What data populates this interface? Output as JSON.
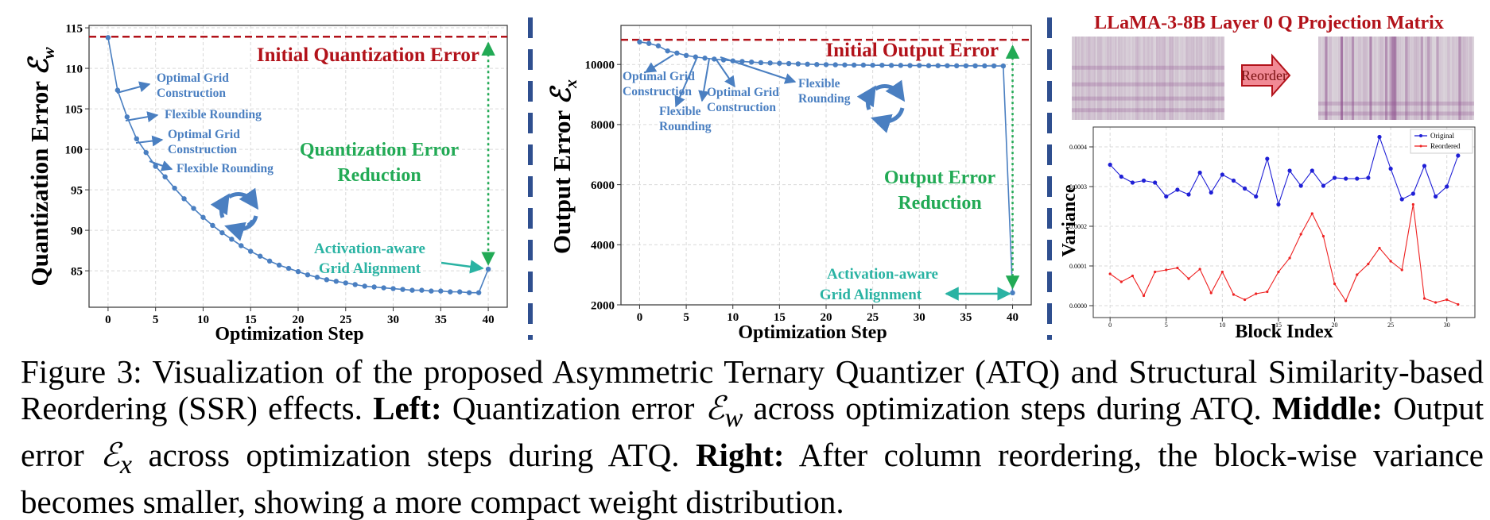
{
  "chart_data": [
    {
      "type": "line",
      "id": "left",
      "title": "",
      "xlabel": "Optimization Step",
      "ylabel": "Quantization Error",
      "ylabel_symbol": "ℰ",
      "ylabel_sub": "w",
      "xlim": [
        -2,
        42
      ],
      "ylim": [
        80.5,
        115.3
      ],
      "xticks": [
        0,
        5,
        10,
        15,
        20,
        25,
        30,
        35,
        40
      ],
      "yticks": [
        85,
        90,
        95,
        100,
        105,
        110,
        115
      ],
      "grid": true,
      "series": [
        {
          "name": "",
          "color": "#4a7fc1",
          "x": [
            0,
            1,
            2,
            3,
            4,
            5,
            6,
            7,
            8,
            9,
            10,
            11,
            12,
            13,
            14,
            15,
            16,
            17,
            18,
            19,
            20,
            21,
            22,
            23,
            24,
            25,
            26,
            27,
            28,
            29,
            30,
            31,
            32,
            33,
            34,
            35,
            36,
            37,
            38,
            39,
            40
          ],
          "y": [
            113.8,
            107.3,
            104.0,
            101.3,
            99.6,
            97.9,
            96.6,
            95.2,
            93.9,
            92.7,
            91.6,
            90.6,
            89.7,
            88.9,
            88.1,
            87.4,
            86.8,
            86.2,
            85.7,
            85.3,
            84.9,
            84.5,
            84.2,
            83.9,
            83.7,
            83.5,
            83.3,
            83.1,
            83.0,
            82.9,
            82.8,
            82.7,
            82.6,
            82.6,
            82.5,
            82.5,
            82.4,
            82.4,
            82.3,
            82.3,
            85.2
          ]
        }
      ],
      "reference_line": {
        "value": 113.9,
        "label": "Initial Quantization Error",
        "color": "#b2121a"
      },
      "annotations": [
        {
          "text": "Optimal Grid",
          "text2": "Construction",
          "color": "#4a7fc1"
        },
        {
          "text": "Flexible Rounding",
          "color": "#4a7fc1"
        },
        {
          "text": "Optimal Grid",
          "text2": "Construction",
          "color": "#4a7fc1"
        },
        {
          "text": "Flexible Rounding",
          "color": "#4a7fc1"
        },
        {
          "text": "Quantization Error",
          "text2": "Reduction",
          "color": "#22aa55"
        },
        {
          "text": "Activation-aware",
          "text2": "Grid Alignment",
          "color": "#2ab3a3"
        }
      ]
    },
    {
      "type": "line",
      "id": "middle",
      "title": "",
      "xlabel": "Optimization Step",
      "ylabel": "Output Error",
      "ylabel_symbol": "ℰ",
      "ylabel_sub": "x",
      "xlim": [
        -2,
        42
      ],
      "ylim": [
        2000,
        11300
      ],
      "xticks": [
        0,
        5,
        10,
        15,
        20,
        25,
        30,
        35,
        40
      ],
      "yticks": [
        2000,
        4000,
        6000,
        8000,
        10000
      ],
      "grid": true,
      "series": [
        {
          "name": "",
          "color": "#4a7fc1",
          "x": [
            0,
            1,
            2,
            3,
            4,
            5,
            6,
            7,
            8,
            9,
            10,
            11,
            12,
            13,
            14,
            15,
            16,
            17,
            18,
            19,
            20,
            21,
            22,
            23,
            24,
            25,
            26,
            27,
            28,
            29,
            30,
            31,
            32,
            33,
            34,
            35,
            36,
            37,
            38,
            39,
            40
          ],
          "y": [
            10750,
            10700,
            10620,
            10450,
            10380,
            10300,
            10250,
            10210,
            10180,
            10150,
            10120,
            10100,
            10080,
            10060,
            10050,
            10040,
            10030,
            10020,
            10010,
            10000,
            9995,
            9990,
            9985,
            9980,
            9980,
            9975,
            9975,
            9970,
            9970,
            9965,
            9965,
            9960,
            9960,
            9958,
            9956,
            9955,
            9954,
            9953,
            9952,
            9950,
            2400
          ]
        }
      ],
      "reference_line": {
        "value": 10820,
        "label": "Initial Output Error",
        "color": "#b2121a"
      },
      "annotations": [
        {
          "text": "Optimal Grid",
          "text2": "Construction",
          "color": "#4a7fc1"
        },
        {
          "text": "Flexible",
          "text2": "Rounding",
          "color": "#4a7fc1"
        },
        {
          "text": "Optimal Grid",
          "text2": "Construction",
          "color": "#4a7fc1"
        },
        {
          "text": "Flexible",
          "text2": "Rounding",
          "color": "#4a7fc1"
        },
        {
          "text": "Output Error",
          "text2": "Reduction",
          "color": "#22aa55"
        },
        {
          "text": "Activation-aware",
          "text2": "Grid Alignment",
          "color": "#2ab3a3"
        }
      ]
    },
    {
      "type": "line",
      "id": "right",
      "title": "LLaMA-3-8B Layer 0 Q Projection Matrix",
      "title_color": "#b2121a",
      "arrow_label": "Reorder",
      "xlabel": "Block Index",
      "ylabel": "Variance",
      "xlim": [
        -1.5,
        32.5
      ],
      "ylim": [
        -3e-05,
        0.00045
      ],
      "xticks": [
        0,
        5,
        10,
        15,
        20,
        25,
        30
      ],
      "yticks": [
        0.0,
        0.0001,
        0.0002,
        0.0003,
        0.0004
      ],
      "ytick_labels": [
        "0.0000",
        "0.0001",
        "0.0002",
        "0.0003",
        "0.0004"
      ],
      "grid": true,
      "legend": "top-right",
      "series": [
        {
          "name": "Original",
          "color": "#1f1fd6",
          "x": [
            0,
            1,
            2,
            3,
            4,
            5,
            6,
            7,
            8,
            9,
            10,
            11,
            12,
            13,
            14,
            15,
            16,
            17,
            18,
            19,
            20,
            21,
            22,
            23,
            24,
            25,
            26,
            27,
            28,
            29,
            30,
            31
          ],
          "y": [
            0.000355,
            0.000325,
            0.00031,
            0.000315,
            0.00031,
            0.000275,
            0.000292,
            0.00028,
            0.000335,
            0.000285,
            0.00033,
            0.000315,
            0.000295,
            0.000275,
            0.00037,
            0.000255,
            0.00034,
            0.000302,
            0.00034,
            0.000302,
            0.000322,
            0.00032,
            0.00032,
            0.000322,
            0.000425,
            0.000345,
            0.000268,
            0.000282,
            0.000352,
            0.000275,
            0.0003,
            0.000378
          ]
        },
        {
          "name": "Reordered",
          "color": "#ee2222",
          "x": [
            0,
            1,
            2,
            3,
            4,
            5,
            6,
            7,
            8,
            9,
            10,
            11,
            12,
            13,
            14,
            15,
            16,
            17,
            18,
            19,
            20,
            21,
            22,
            23,
            24,
            25,
            26,
            27,
            28,
            29,
            30,
            31
          ],
          "y": [
            8e-05,
            6e-05,
            7.5e-05,
            2.5e-05,
            8.5e-05,
            9e-05,
            9.5e-05,
            6.8e-05,
            9.2e-05,
            3.2e-05,
            8.5e-05,
            2.8e-05,
            1.5e-05,
            3e-05,
            3.5e-05,
            8.5e-05,
            0.00012,
            0.00018,
            0.000232,
            0.000175,
            5.5e-05,
            1.2e-05,
            7.8e-05,
            0.000105,
            0.000145,
            0.000112,
            9e-05,
            0.000255,
            1.8e-05,
            8e-06,
            1.5e-05,
            3e-06
          ]
        }
      ]
    }
  ],
  "caption": {
    "lead": "Figure 3:  Visualization of the proposed Asymmetric Ternary Quantizer (ATQ) and Structural Similarity-based Reordering (SSR) effects.",
    "left_label": "Left:",
    "left_text_a": "Quantization error",
    "left_sym": "ℰ",
    "left_sub": "w",
    "left_text_b": "across optimization steps during ATQ.",
    "middle_label": "Middle:",
    "middle_text_a": "Output error",
    "middle_sym": "ℰ",
    "middle_sub": "x",
    "middle_text_b": "across optimization steps during ATQ.",
    "right_label": "Right:",
    "right_text": "After column reordering, the block-wise variance becomes smaller, showing a more compact weight distribution."
  },
  "colors": {
    "separator": "#2f4f8f",
    "grid": "#d9d9d9",
    "heatmap_dark": "#8a4a8a",
    "heatmap_light": "#e0dce0"
  }
}
